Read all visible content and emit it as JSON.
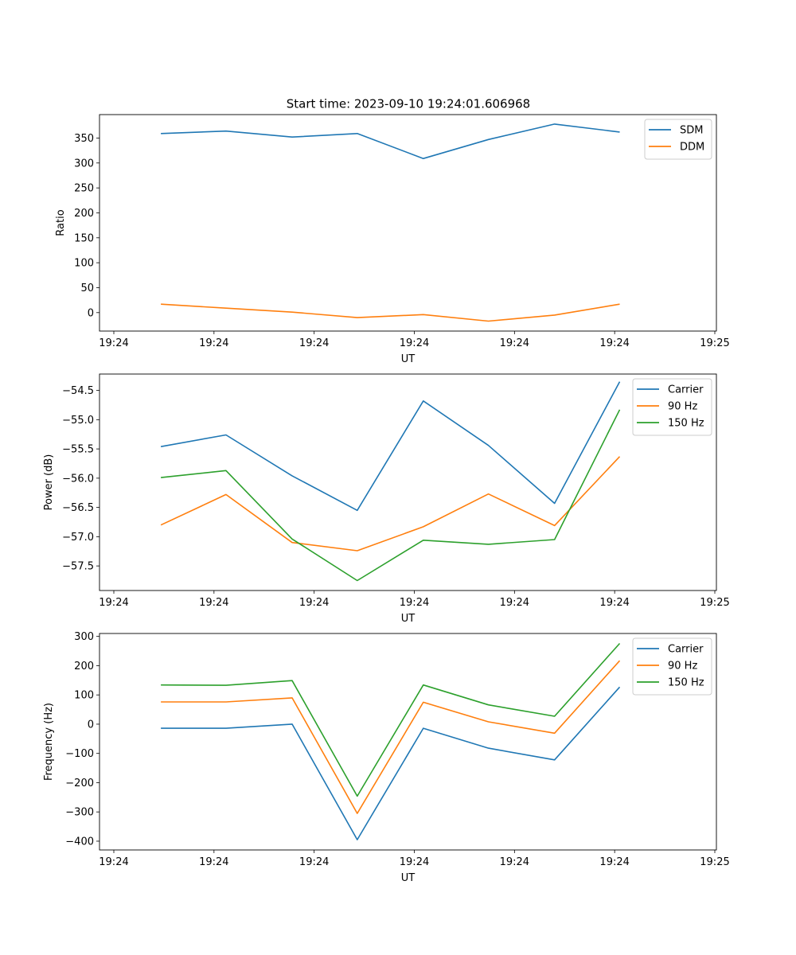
{
  "figure_title": "Start time: 2023-09-10 19:24:01.606968",
  "chart_data": [
    {
      "type": "line",
      "xlabel": "UT",
      "ylabel": "Ratio",
      "xlim": [
        0,
        6
      ],
      "x_tick_values": [
        0.0,
        1.0,
        2.0,
        3.0,
        4.0,
        5.0,
        6.0
      ],
      "x_tick_labels": [
        "19:24",
        "19:24",
        "19:24",
        "19:24",
        "19:24",
        "19:24",
        "19:25"
      ],
      "ylim": [
        -37,
        397
      ],
      "y_tick_values": [
        0,
        50,
        100,
        150,
        200,
        250,
        300,
        350
      ],
      "y_tick_labels": [
        "0",
        "50",
        "100",
        "150",
        "200",
        "250",
        "300",
        "350"
      ],
      "legend_position": "top-right",
      "x": [
        0.47,
        1.12,
        1.78,
        2.43,
        3.09,
        3.74,
        4.4,
        5.05
      ],
      "series": [
        {
          "name": "SDM",
          "color": "#1f77b4",
          "values": [
            359,
            364,
            352,
            359,
            309,
            347,
            378,
            362
          ]
        },
        {
          "name": "DDM",
          "color": "#ff7f0e",
          "values": [
            17,
            9,
            1,
            -10,
            -4,
            -17,
            -5,
            17
          ]
        }
      ]
    },
    {
      "type": "line",
      "xlabel": "UT",
      "ylabel": "Power (dB)",
      "xlim": [
        0,
        6
      ],
      "x_tick_values": [
        0.0,
        1.0,
        2.0,
        3.0,
        4.0,
        5.0,
        6.0
      ],
      "x_tick_labels": [
        "19:24",
        "19:24",
        "19:24",
        "19:24",
        "19:24",
        "19:24",
        "19:25"
      ],
      "ylim": [
        -57.92,
        -54.22
      ],
      "y_tick_values": [
        -57.5,
        -57.0,
        -56.5,
        -56.0,
        -55.5,
        -55.0,
        -54.5
      ],
      "y_tick_labels": [
        "−57.5",
        "−57.0",
        "−56.5",
        "−56.0",
        "−55.5",
        "−55.0",
        "−54.5"
      ],
      "legend_position": "top-right",
      "x": [
        0.47,
        1.12,
        1.78,
        2.43,
        3.09,
        3.74,
        4.4,
        5.05
      ],
      "series": [
        {
          "name": "Carrier",
          "color": "#1f77b4",
          "values": [
            -55.46,
            -55.26,
            -55.96,
            -56.55,
            -54.68,
            -55.44,
            -56.43,
            -54.35
          ]
        },
        {
          "name": "90 Hz",
          "color": "#ff7f0e",
          "values": [
            -56.8,
            -56.28,
            -57.1,
            -57.24,
            -56.83,
            -56.27,
            -56.81,
            -55.63
          ]
        },
        {
          "name": "150 Hz",
          "color": "#2ca02c",
          "values": [
            -55.99,
            -55.87,
            -57.04,
            -57.75,
            -57.06,
            -57.13,
            -57.05,
            -54.83
          ]
        }
      ]
    },
    {
      "type": "line",
      "xlabel": "UT",
      "ylabel": "Frequency (Hz)",
      "xlim": [
        0,
        6
      ],
      "x_tick_values": [
        0.0,
        1.0,
        2.0,
        3.0,
        4.0,
        5.0,
        6.0
      ],
      "x_tick_labels": [
        "19:24",
        "19:24",
        "19:24",
        "19:24",
        "19:24",
        "19:24",
        "19:25"
      ],
      "ylim": [
        -430,
        310
      ],
      "y_tick_values": [
        -400,
        -300,
        -200,
        -100,
        0,
        100,
        200,
        300
      ],
      "y_tick_labels": [
        "−400",
        "−300",
        "−200",
        "−100",
        "0",
        "100",
        "200",
        "300"
      ],
      "legend_position": "top-right",
      "x": [
        0.47,
        1.12,
        1.78,
        2.43,
        3.09,
        3.74,
        4.4,
        5.05
      ],
      "series": [
        {
          "name": "Carrier",
          "color": "#1f77b4",
          "values": [
            -14,
            -14,
            0,
            -395,
            -14,
            -82,
            -122,
            127
          ]
        },
        {
          "name": "90 Hz",
          "color": "#ff7f0e",
          "values": [
            76,
            76,
            90,
            -305,
            75,
            8,
            -31,
            217
          ]
        },
        {
          "name": "150 Hz",
          "color": "#2ca02c",
          "values": [
            134,
            133,
            149,
            -246,
            134,
            66,
            27,
            276
          ]
        }
      ]
    }
  ]
}
